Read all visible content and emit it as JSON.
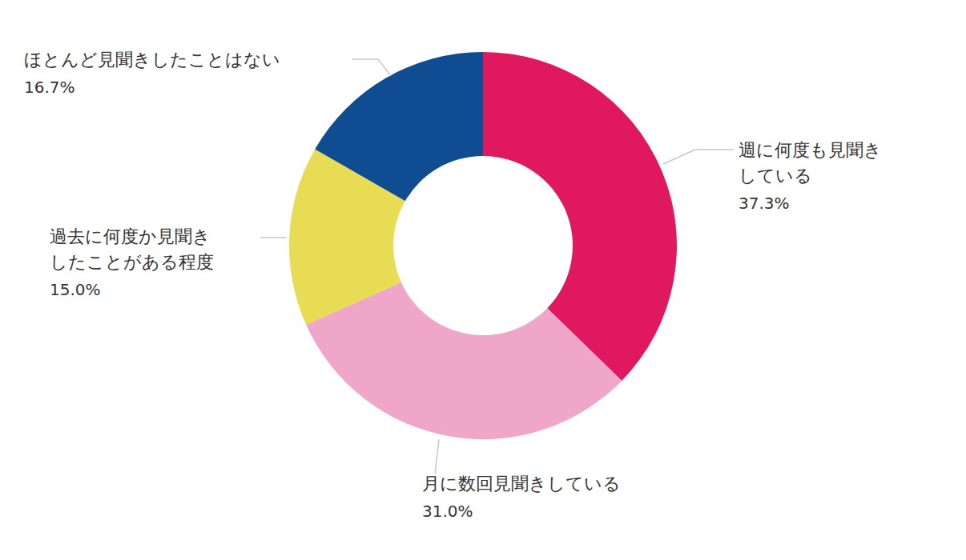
{
  "chart_data": {
    "type": "donut",
    "categories": [
      "週に何度も見聞き\nしている",
      "月に数回見聞きしている",
      "過去に何度か見聞き\nしたことがある程度",
      "ほとんど見聞きしたことはない"
    ],
    "values": [
      37.3,
      31.0,
      15.0,
      16.7
    ],
    "value_labels": [
      "37.3%",
      "31.0%",
      "15.0%",
      "16.7%"
    ],
    "colors": [
      "#e0195e",
      "#f0a6c8",
      "#e8dc55",
      "#0f4c92"
    ],
    "data_labels": true
  }
}
